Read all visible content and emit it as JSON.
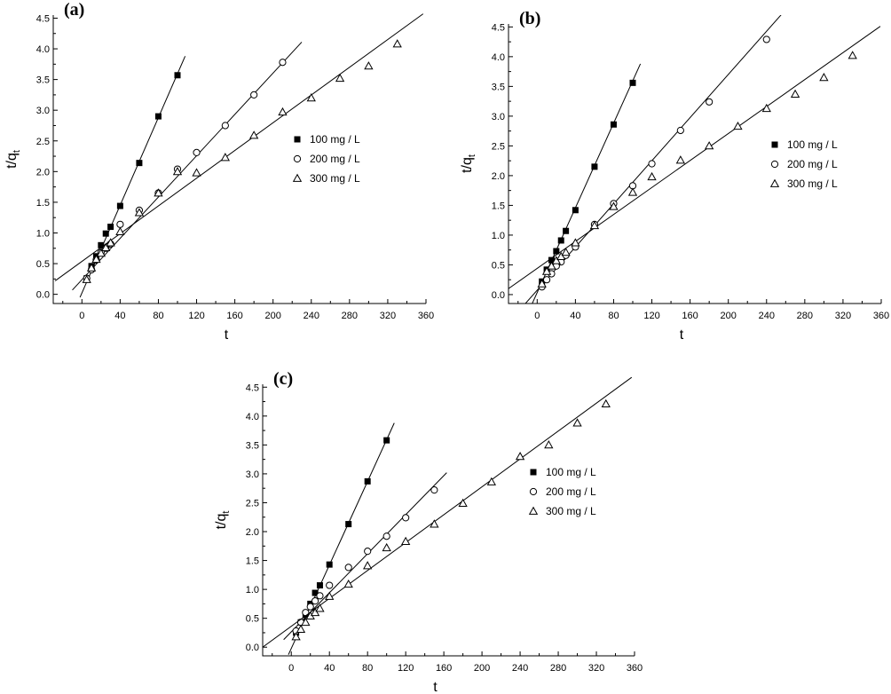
{
  "chart_data": [
    {
      "type": "scatter",
      "panel_label": "(a)",
      "xlabel": "t",
      "ylabel_main": "t/q",
      "ylabel_sub": "t",
      "xlim": [
        -30,
        360
      ],
      "ylim": [
        -0.15,
        4.55
      ],
      "xticks": [
        0,
        40,
        80,
        120,
        160,
        200,
        240,
        280,
        320,
        360
      ],
      "yticks": [
        0.0,
        0.5,
        1.0,
        1.5,
        2.0,
        2.5,
        3.0,
        3.5,
        4.0,
        4.5
      ],
      "legend_position": "right-middle",
      "series": [
        {
          "name": "100 mg / L",
          "marker": "square",
          "x": [
            5,
            10,
            15,
            20,
            25,
            30,
            40,
            60,
            80,
            100
          ],
          "y": [
            0.26,
            0.46,
            0.62,
            0.8,
            0.99,
            1.1,
            1.44,
            2.14,
            2.9,
            3.57
          ],
          "fit": {
            "x": [
              -2,
              108
            ],
            "y": [
              -0.05,
              3.88
            ]
          }
        },
        {
          "name": "200 mg / L",
          "marker": "circle",
          "x": [
            5,
            10,
            15,
            20,
            25,
            30,
            40,
            60,
            80,
            100,
            120,
            150,
            180,
            210
          ],
          "y": [
            0.26,
            0.4,
            0.56,
            0.68,
            0.75,
            0.82,
            1.14,
            1.37,
            1.65,
            2.04,
            2.31,
            2.75,
            3.25,
            3.78
          ],
          "fit": {
            "x": [
              -10,
              230
            ],
            "y": [
              0.07,
              4.11
            ]
          }
        },
        {
          "name": "300 mg / L",
          "marker": "triangle",
          "x": [
            5,
            10,
            15,
            20,
            25,
            30,
            40,
            60,
            80,
            100,
            120,
            150,
            180,
            210,
            240,
            270,
            300,
            330
          ],
          "y": [
            0.24,
            0.43,
            0.57,
            0.67,
            0.76,
            0.84,
            1.02,
            1.33,
            1.65,
            2.0,
            1.98,
            2.23,
            2.59,
            2.97,
            3.2,
            3.52,
            3.72,
            4.08
          ],
          "fit": {
            "x": [
              -28,
              357
            ],
            "y": [
              0.22,
              4.57
            ]
          }
        }
      ]
    },
    {
      "type": "scatter",
      "panel_label": "(b)",
      "xlabel": "t",
      "ylabel_main": "t/q",
      "ylabel_sub": "t",
      "xlim": [
        -30,
        360
      ],
      "ylim": [
        -0.15,
        4.55
      ],
      "xticks": [
        0,
        40,
        80,
        120,
        160,
        200,
        240,
        280,
        320,
        360
      ],
      "yticks": [
        0.0,
        0.5,
        1.0,
        1.5,
        2.0,
        2.5,
        3.0,
        3.5,
        4.0,
        4.5
      ],
      "legend_position": "right-middle",
      "series": [
        {
          "name": "100 mg / L",
          "marker": "square",
          "x": [
            5,
            10,
            15,
            20,
            25,
            30,
            40,
            60,
            80,
            100
          ],
          "y": [
            0.22,
            0.42,
            0.58,
            0.73,
            0.91,
            1.07,
            1.42,
            2.15,
            2.86,
            3.56
          ],
          "fit": {
            "x": [
              -15,
              108
            ],
            "y": [
              -0.5,
              3.88
            ]
          }
        },
        {
          "name": "200 mg / L",
          "marker": "circle",
          "x": [
            5,
            10,
            15,
            20,
            25,
            30,
            40,
            60,
            80,
            100,
            120,
            150,
            180,
            240
          ],
          "y": [
            0.13,
            0.25,
            0.35,
            0.48,
            0.55,
            0.66,
            0.8,
            1.18,
            1.53,
            1.83,
            2.2,
            2.76,
            3.24,
            4.29
          ],
          "fit": {
            "x": [
              -25,
              260
            ],
            "y": [
              -0.38,
              4.79
            ]
          }
        },
        {
          "name": "300 mg / L",
          "marker": "triangle",
          "x": [
            5,
            10,
            15,
            20,
            25,
            30,
            40,
            60,
            80,
            100,
            120,
            150,
            180,
            210,
            240,
            270,
            300,
            330
          ],
          "y": [
            0.18,
            0.39,
            0.48,
            0.57,
            0.64,
            0.71,
            0.87,
            1.16,
            1.48,
            1.72,
            1.98,
            2.26,
            2.5,
            2.83,
            3.13,
            3.37,
            3.65,
            4.02
          ],
          "fit": {
            "x": [
              -30,
              359
            ],
            "y": [
              0.1,
              4.51
            ]
          }
        }
      ]
    },
    {
      "type": "scatter",
      "panel_label": "(c)",
      "xlabel": "t",
      "ylabel_main": "t/q",
      "ylabel_sub": "t",
      "xlim": [
        -30,
        360
      ],
      "ylim": [
        -0.15,
        4.55
      ],
      "xticks": [
        0,
        40,
        80,
        120,
        160,
        200,
        240,
        280,
        320,
        360
      ],
      "yticks": [
        0.0,
        0.5,
        1.0,
        1.5,
        2.0,
        2.5,
        3.0,
        3.5,
        4.0,
        4.5
      ],
      "legend_position": "right-middle",
      "series": [
        {
          "name": "100 mg / L",
          "marker": "square",
          "x": [
            5,
            10,
            15,
            20,
            25,
            30,
            40,
            60,
            80,
            100
          ],
          "y": [
            0.25,
            0.43,
            0.56,
            0.75,
            0.94,
            1.07,
            1.43,
            2.13,
            2.87,
            3.58
          ],
          "fit": {
            "x": [
              -3,
              108
            ],
            "y": [
              -0.13,
              3.88
            ]
          }
        },
        {
          "name": "200 mg / L",
          "marker": "circle",
          "x": [
            5,
            10,
            15,
            20,
            25,
            30,
            40,
            60,
            80,
            100,
            120,
            150
          ],
          "y": [
            0.28,
            0.43,
            0.6,
            0.7,
            0.8,
            0.89,
            1.07,
            1.38,
            1.66,
            1.92,
            2.24,
            2.72
          ],
          "fit": {
            "x": [
              -8,
              163
            ],
            "y": [
              0.13,
              3.02
            ]
          }
        },
        {
          "name": "300 mg / L",
          "marker": "triangle",
          "x": [
            5,
            10,
            15,
            20,
            25,
            30,
            40,
            60,
            80,
            100,
            120,
            150,
            180,
            210,
            240,
            270,
            300,
            330
          ],
          "y": [
            0.18,
            0.31,
            0.43,
            0.54,
            0.6,
            0.67,
            0.88,
            1.09,
            1.41,
            1.72,
            1.83,
            2.13,
            2.49,
            2.86,
            3.3,
            3.5,
            3.88,
            4.21
          ],
          "fit": {
            "x": [
              -30,
              357
            ],
            "y": [
              0.0,
              4.67
            ]
          }
        }
      ]
    }
  ]
}
